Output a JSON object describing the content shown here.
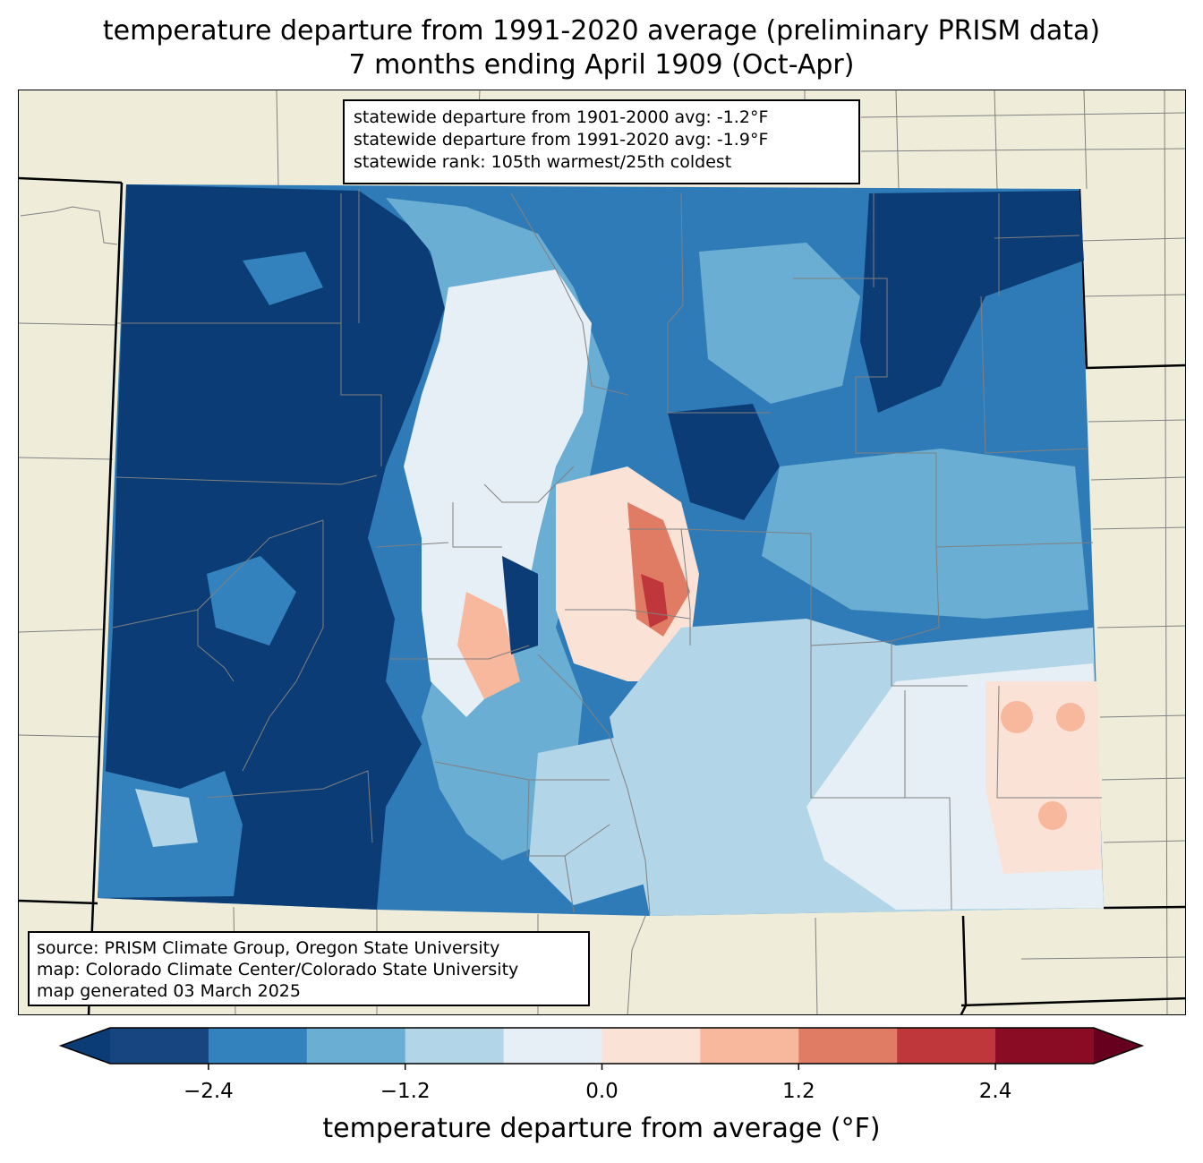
{
  "title": {
    "line1": "temperature departure from 1991-2020 average (preliminary PRISM data)",
    "line2": "7 months ending April 1909 (Oct-Apr)"
  },
  "stats": {
    "line1": "statewide departure from 1901-2000 avg: -1.2°F",
    "line2": "statewide departure from 1991-2020 avg: -1.9°F",
    "line3": "statewide rank: 105th warmest/25th coldest"
  },
  "source": {
    "line1": "source: PRISM Climate Group, Oregon State University",
    "line2": "map: Colorado Climate Center/Colorado State University",
    "line3": "map generated 03 March 2025"
  },
  "colorbar": {
    "label": "temperature departure from average (°F)",
    "ticks": [
      "−2.4",
      "−1.2",
      "0.0",
      "1.2",
      "2.4"
    ],
    "tick_values": [
      -2.4,
      -1.2,
      0.0,
      1.2,
      2.4
    ],
    "range": [
      -3.0,
      3.0
    ],
    "colors": [
      "#0b3c75",
      "#16457f",
      "#3381bd",
      "#6aaed3",
      "#b2d5e7",
      "#e6eff6",
      "#fae2d7",
      "#f7b89d",
      "#e07c64",
      "#c0373b",
      "#8a0b24",
      "#67001f"
    ]
  },
  "map_colors": {
    "background": "#efedda",
    "state_border": "#000000",
    "county_lines": "#808080"
  }
}
